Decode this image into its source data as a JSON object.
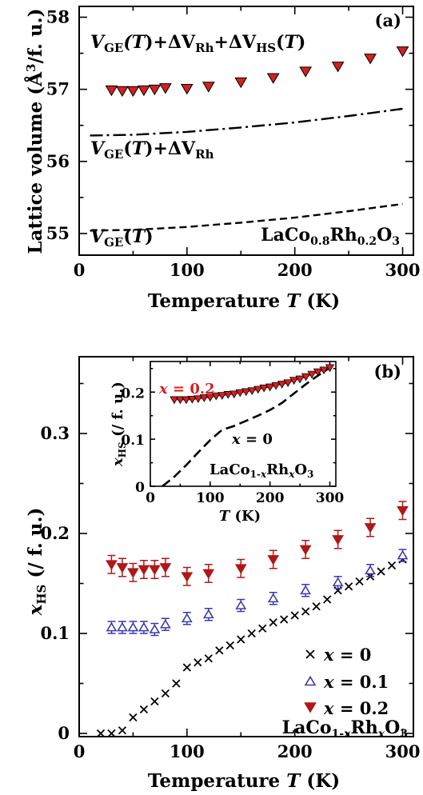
{
  "chart_data": [
    {
      "panel": "(a)",
      "type": "scatter",
      "xlabel": "Temperature T (K)",
      "ylabel": "Lattice volume (Å³/f. u.)",
      "xlim": [
        0,
        310
      ],
      "ylim": [
        54.7,
        58.15
      ],
      "xticks": [
        0,
        100,
        200,
        300
      ],
      "yticks": [
        55,
        56,
        57,
        58
      ],
      "compound": "LaCo0.8Rh0.2O3",
      "series": [
        {
          "name": "V_GE(T)+ΔV_Rh+ΔV_HS(T)",
          "marker": "down-triangle",
          "color": "#d42020",
          "x": [
            30,
            40,
            50,
            60,
            70,
            80,
            100,
            120,
            150,
            180,
            210,
            240,
            270,
            300
          ],
          "y": [
            56.99,
            56.98,
            56.98,
            56.99,
            57.0,
            57.02,
            57.01,
            57.04,
            57.1,
            57.16,
            57.25,
            57.32,
            57.43,
            57.53
          ]
        },
        {
          "name": "V_GE(T)+ΔV_Rh",
          "style": "dash-dot",
          "x": [
            10,
            50,
            100,
            150,
            200,
            250,
            300
          ],
          "y": [
            56.36,
            56.37,
            56.41,
            56.47,
            56.54,
            56.63,
            56.73
          ]
        },
        {
          "name": "V_GE(T)",
          "style": "dashed",
          "x": [
            10,
            50,
            100,
            150,
            200,
            250,
            300
          ],
          "y": [
            55.04,
            55.05,
            55.09,
            55.15,
            55.22,
            55.31,
            55.41
          ]
        }
      ]
    },
    {
      "panel": "(b)",
      "type": "scatter",
      "xlabel": "Temperature T (K)",
      "ylabel": "x_HS (/ f. u.)",
      "xlim": [
        0,
        310
      ],
      "ylim": [
        -0.002,
        0.242
      ],
      "xticks": [
        0,
        100,
        200,
        300
      ],
      "yticks": [
        0,
        0.1,
        0.2,
        0.3
      ],
      "legend_position": "bottom-right",
      "compound": "LaCo1-xRhxO3",
      "series": [
        {
          "name": "x = 0",
          "marker": "x",
          "color": "#000000",
          "x": [
            20,
            30,
            40,
            50,
            60,
            70,
            80,
            90,
            100,
            110,
            120,
            130,
            140,
            150,
            160,
            170,
            180,
            190,
            200,
            210,
            220,
            230,
            240,
            250,
            260,
            270,
            280,
            290,
            300
          ],
          "y": [
            0.0,
            0.0,
            0.003,
            0.016,
            0.024,
            0.032,
            0.04,
            0.05,
            0.066,
            0.071,
            0.075,
            0.083,
            0.088,
            0.094,
            0.1,
            0.105,
            0.111,
            0.114,
            0.118,
            0.122,
            0.127,
            0.134,
            0.143,
            0.147,
            0.152,
            0.157,
            0.162,
            0.168,
            0.174
          ]
        },
        {
          "name": "x = 0.1",
          "marker": "up-triangle",
          "color": "#3a3ab0",
          "x": [
            30,
            40,
            50,
            60,
            70,
            80,
            100,
            120,
            150,
            180,
            210,
            240,
            270,
            300
          ],
          "y": [
            0.106,
            0.106,
            0.106,
            0.106,
            0.104,
            0.109,
            0.115,
            0.119,
            0.128,
            0.135,
            0.143,
            0.151,
            0.163,
            0.178
          ],
          "error": 0.006
        },
        {
          "name": "x = 0.2",
          "marker": "down-triangle",
          "color": "#b01818",
          "x": [
            30,
            40,
            50,
            60,
            70,
            80,
            100,
            120,
            150,
            180,
            210,
            240,
            270,
            300
          ],
          "y": [
            0.169,
            0.166,
            0.161,
            0.164,
            0.164,
            0.166,
            0.157,
            0.16,
            0.165,
            0.174,
            0.184,
            0.194,
            0.206,
            0.223
          ],
          "error": 0.009
        }
      ]
    },
    {
      "panel": "(b) inset",
      "type": "line",
      "xlabel": "T (K)",
      "ylabel": "x_HS (/ f. u.)",
      "xlim": [
        0,
        310
      ],
      "ylim": [
        0,
        0.265
      ],
      "xticks": [
        0,
        100,
        200,
        300
      ],
      "yticks": [
        0,
        0.1,
        0.2
      ],
      "compound": "LaCo1-xRhxO3",
      "series": [
        {
          "name": "x = 0.2",
          "marker": "down-triangle",
          "color": "#d42020",
          "x": [
            40,
            50,
            60,
            70,
            80,
            90,
            100,
            110,
            120,
            130,
            140,
            150,
            160,
            170,
            180,
            190,
            200,
            210,
            220,
            230,
            240,
            250,
            260,
            270,
            280,
            290,
            300
          ],
          "y": [
            0.184,
            0.184,
            0.184,
            0.185,
            0.186,
            0.188,
            0.189,
            0.192,
            0.193,
            0.195,
            0.196,
            0.199,
            0.201,
            0.203,
            0.206,
            0.209,
            0.211,
            0.214,
            0.217,
            0.22,
            0.225,
            0.228,
            0.233,
            0.238,
            0.243,
            0.247,
            0.252
          ]
        },
        {
          "name": "x = 0",
          "style": "dashed",
          "color": "#000000",
          "x": [
            20,
            40,
            60,
            80,
            100,
            120,
            140,
            160,
            180,
            200,
            220,
            240,
            260,
            280,
            300
          ],
          "y": [
            0.0,
            0.02,
            0.045,
            0.072,
            0.098,
            0.12,
            0.128,
            0.139,
            0.15,
            0.162,
            0.177,
            0.197,
            0.217,
            0.235,
            0.252
          ]
        }
      ]
    }
  ],
  "labels": {
    "panel_a": "(a)",
    "panel_b": "(b)",
    "y_a_main": "Lattice volume (Å",
    "y_a_sup": "3",
    "y_a_tail": "/f. u.)",
    "y_b_unit": " (/ f. u.)",
    "x_main": "Temperature ",
    "x_var": "T",
    "x_unit": " (K)",
    "V": "V",
    "GE": "GE",
    "T": "T",
    "paren_T": "(T)",
    "plus_delta": "+ΔV",
    "Rh": "Rh",
    "HS": "HS",
    "x": "x",
    "eq0": " = 0",
    "eq01": " = 0.1",
    "eq02": " = 0.2",
    "compound_a_1": "LaCo",
    "compound_a_2": "0.8",
    "compound_a_3": "Rh",
    "compound_a_4": "0.2",
    "compound_a_5": "O",
    "compound_a_6": "3",
    "compound_b_1": "LaCo",
    "compound_b_2": "1-",
    "compound_b_3": "Rh",
    "compound_b_5": "O",
    "compound_b_6": "3",
    "inset_x_unit": " (K)"
  },
  "tick_labels": {
    "a_x": [
      "0",
      "100",
      "200",
      "300"
    ],
    "a_y": [
      "55",
      "56",
      "57",
      "58"
    ],
    "b_x": [
      "0",
      "100",
      "200",
      "300"
    ],
    "b_y": [
      "0",
      "0.1",
      "0.2",
      "0.3"
    ],
    "inset_x": [
      "0",
      "100",
      "200",
      "300"
    ],
    "inset_y": [
      "0",
      "0.1",
      "0.2"
    ]
  }
}
